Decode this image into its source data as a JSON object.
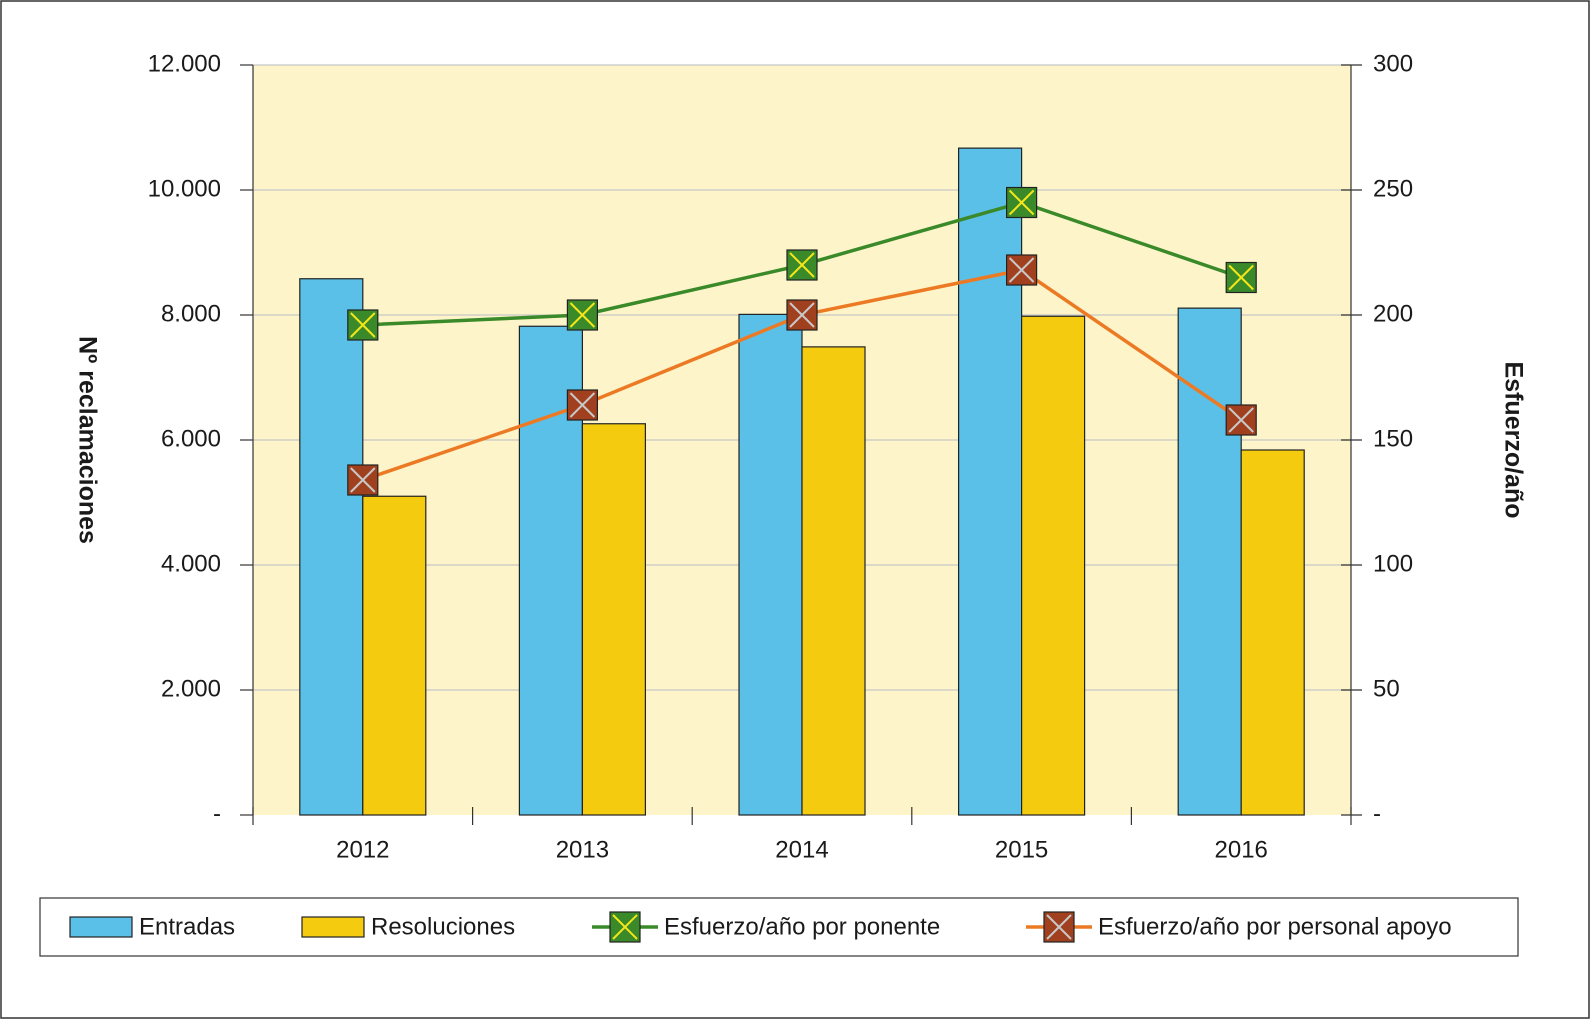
{
  "chart_data": {
    "type": "bar",
    "categories": [
      "2012",
      "2013",
      "2014",
      "2015",
      "2016"
    ],
    "ylabel": "Nº reclamaciones",
    "y2label": "Esfuerzo/año",
    "ylim": [
      0,
      12000
    ],
    "yticks": [
      {
        "value": 0,
        "label": "-"
      },
      {
        "value": 2000,
        "label": "2.000"
      },
      {
        "value": 4000,
        "label": "4.000"
      },
      {
        "value": 6000,
        "label": "6.000"
      },
      {
        "value": 8000,
        "label": "8.000"
      },
      {
        "value": 10000,
        "label": "10.000"
      },
      {
        "value": 12000,
        "label": "12.000"
      }
    ],
    "y2lim": [
      0,
      300
    ],
    "y2ticks": [
      {
        "value": 0,
        "label": "-"
      },
      50,
      100,
      150,
      200,
      250,
      300
    ],
    "grid": true,
    "legend": "bottom",
    "series": [
      {
        "name": "Entradas",
        "color": "#5bc0e8",
        "values": [
          8580,
          7820,
          8010,
          10670,
          8110
        ]
      },
      {
        "name": "Resoluciones",
        "color": "#f4cb0f",
        "values": [
          5100,
          6260,
          7490,
          7980,
          5840
        ]
      },
      {
        "name": "Esfuerzo/año por ponente",
        "color": "#3a8a2a",
        "marker_fill": "#3a8a2a",
        "marker_x_color": "#f5e61a",
        "axis": "y2",
        "values": [
          196,
          200,
          220,
          245,
          215
        ]
      },
      {
        "name": "Esfuerzo/año por personal apoyo",
        "color": "#ec7a24",
        "marker_fill": "#a0401f",
        "marker_x_color": "#c8c8c8",
        "axis": "y2",
        "values": [
          134,
          164,
          200,
          218,
          158
        ]
      }
    ]
  }
}
